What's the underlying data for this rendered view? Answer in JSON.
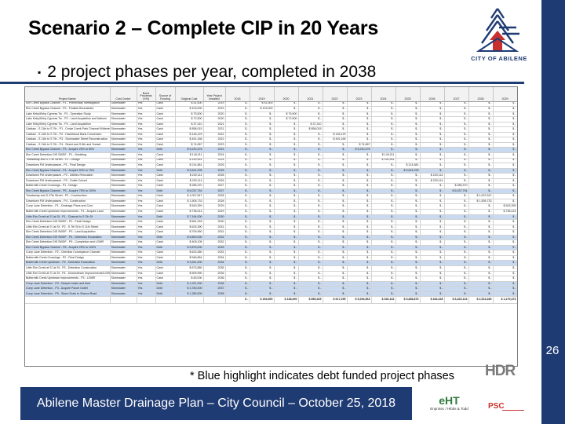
{
  "slide": {
    "title": "Scenario 2 – Complete CIP in 20 Years",
    "bullet": "2 project phases per year, completed in 2038",
    "footnote": "* Blue highlight indicates debt funded project phases",
    "footer": "Abilene Master Drainage Plan – City Council – October 25, 2018",
    "page_number": "26",
    "city_logo_text": "CITY OF ABILENE",
    "hdr_logo_text": "HDR",
    "eht_logo_text": "eHT",
    "eht_logo_sub": "Enprotec / Hibbs & Todd",
    "psc_logo_text": "PSC",
    "brand_color": "#1f3b73",
    "debt_highlight_color": "#c9daf0"
  },
  "table": {
    "headers": [
      "Project Name",
      "Cost Center",
      "Bond Proceeds (Y/N)",
      "Source of Funding",
      "Original Cost",
      "Year Project Installed",
      "2018",
      "2019",
      "2020",
      "2021",
      "2022",
      "2023",
      "2024",
      "2025",
      "2026",
      "2027",
      "2028",
      "2029"
    ],
    "rows": [
      {
        "c": [
          "Elm Creek Bypass Channel - P1 - Preliminary Investigation",
          "Stormwater",
          "Yes",
          "Cash",
          "$ 51,500",
          "2019",
          "$ -",
          "$ 51,500",
          "$ -",
          "$ -",
          "$ -",
          "$ -",
          "$ -",
          "$ -",
          "$ -",
          "$ -",
          "$ -",
          "$ -"
        ],
        "debt": false
      },
      {
        "c": [
          "Elm Creek Bypass Channel - P2 - Finalize Boundaries",
          "Stormwater",
          "Yes",
          "Cash",
          "$ 103,000",
          "2019",
          "$ -",
          "$ 103,000",
          "$ -",
          "$ -",
          "$ -",
          "$ -",
          "$ -",
          "$ -",
          "$ -",
          "$ -",
          "$ -",
          "$ -"
        ],
        "debt": false
      },
      {
        "c": [
          "Lake Kirby/Kirby Cypress Tw - P1 - Operation Study",
          "Stormwater",
          "Yes",
          "Cash",
          "$ 75,500",
          "2020",
          "$ -",
          "$ -",
          "$ 75,500",
          "$ -",
          "$ -",
          "$ -",
          "$ -",
          "$ -",
          "$ -",
          "$ -",
          "$ -",
          "$ -"
        ],
        "debt": false
      },
      {
        "c": [
          "Lake Kirby/Kirby Cypress Tw - P2 - Land Acquisition and Notices",
          "Stormwater",
          "Yes",
          "Cash",
          "$ 72,500",
          "2020",
          "$ -",
          "$ -",
          "$ 72,500",
          "$ -",
          "$ -",
          "$ -",
          "$ -",
          "$ -",
          "$ -",
          "$ -",
          "$ -",
          "$ -"
        ],
        "debt": false
      },
      {
        "c": [
          "Lake Kirby/Kirby Cypress Tw - P3 - Land Acquisition",
          "Stormwater",
          "Yes",
          "Cash",
          "$ 37,310",
          "2021",
          "$ -",
          "$ -",
          "$ -",
          "$ 37,310",
          "$ -",
          "$ -",
          "$ -",
          "$ -",
          "$ -",
          "$ -",
          "$ -",
          "$ -"
        ],
        "debt": false
      },
      {
        "c": [
          "Catclaw - S 11th to S 7th - P1 - Cedar Creek Park Channel Widening",
          "Stormwater",
          "Yes",
          "Cash",
          "$ 858,015",
          "2021",
          "$ -",
          "$ -",
          "$ -",
          "$ 858,015",
          "$ -",
          "$ -",
          "$ -",
          "$ -",
          "$ -",
          "$ -",
          "$ -",
          "$ -"
        ],
        "debt": false
      },
      {
        "c": [
          "Catclaw - S 11th to S 7th - P2 - Hazelwood Bank Conversion",
          "Stormwater",
          "Yes",
          "Cash",
          "$ 126,129",
          "2022",
          "$ -",
          "$ -",
          "$ -",
          "$ -",
          "$ 126,129",
          "$ -",
          "$ -",
          "$ -",
          "$ -",
          "$ -",
          "$ -",
          "$ -"
        ],
        "debt": false
      },
      {
        "c": [
          "Catclaw - S 11th to S 7th - P3 - Stormwater Street Reconstruction",
          "Stormwater",
          "Yes",
          "Cash",
          "$ 491,166",
          "2022",
          "$ -",
          "$ -",
          "$ -",
          "$ -",
          "$ 491,166",
          "$ -",
          "$ -",
          "$ -",
          "$ -",
          "$ -",
          "$ -",
          "$ -"
        ],
        "debt": false
      },
      {
        "c": [
          "Catclaw - S 11th to S 7th - P4 - Street and S 6th and Sunset",
          "Stormwater",
          "Yes",
          "Cash",
          "$ 74,087",
          "2023",
          "$ -",
          "$ -",
          "$ -",
          "$ -",
          "$ -",
          "$ 74,087",
          "$ -",
          "$ -",
          "$ -",
          "$ -",
          "$ -",
          "$ -"
        ],
        "debt": false
      },
      {
        "c": [
          "Elm Creek Bypass Channel - P3 - Acquire 25% to 50%",
          "Stormwater",
          "Yes",
          "Debt",
          "$ 5,220,476",
          "2023",
          "$ -",
          "$ -",
          "$ -",
          "$ -",
          "$ -",
          "$ 5,220,476",
          "$ -",
          "$ -",
          "$ -",
          "$ -",
          "$ -",
          "$ -"
        ],
        "debt": true
      },
      {
        "c": [
          "Elm Creek Detention DIS SWDF - P1 - Modeling",
          "Stormwater",
          "Yes",
          "Cash",
          "$ 149,211",
          "2024",
          "$ -",
          "$ -",
          "$ -",
          "$ -",
          "$ -",
          "$ -",
          "$ 149,211",
          "$ -",
          "$ -",
          "$ -",
          "$ -",
          "$ -"
        ],
        "debt": false
      },
      {
        "c": [
          "Treadaway and S 27th Street - P1 - Design",
          "Stormwater",
          "Yes",
          "Cash",
          "$ 190,951",
          "2024",
          "$ -",
          "$ -",
          "$ -",
          "$ -",
          "$ -",
          "$ -",
          "$ 190,951",
          "$ -",
          "$ -",
          "$ -",
          "$ -",
          "$ -"
        ],
        "debt": false
      },
      {
        "c": [
          "Downtown FM Underpasses - P1 - Final Design",
          "Stormwater",
          "Yes",
          "Cash",
          "$ 214,581",
          "2025",
          "$ -",
          "$ -",
          "$ -",
          "$ -",
          "$ -",
          "$ -",
          "$ -",
          "$ 214,581",
          "$ -",
          "$ -",
          "$ -",
          "$ -"
        ],
        "debt": false
      },
      {
        "c": [
          "Elm Creek Bypass Channel - P4 - Acquire 50% to 75%",
          "Stormwater",
          "Yes",
          "Debt",
          "$ 5,624,295",
          "2025",
          "$ -",
          "$ -",
          "$ -",
          "$ -",
          "$ -",
          "$ -",
          "$ -",
          "$ 5,624,295",
          "$ -",
          "$ -",
          "$ -",
          "$ -"
        ],
        "debt": true
      },
      {
        "c": [
          "Downtown FM Underpasses - P2 - Utilities Relocation",
          "Stormwater",
          "Yes",
          "Cash",
          "$ 220,114",
          "2026",
          "$ -",
          "$ -",
          "$ -",
          "$ -",
          "$ -",
          "$ -",
          "$ -",
          "$ -",
          "$ 220,114",
          "$ -",
          "$ -",
          "$ -"
        ],
        "debt": false
      },
      {
        "c": [
          "Downtown FM Underpasses - P3 - Outlet Culvert",
          "Stormwater",
          "Yes",
          "Cash",
          "$ 220,114",
          "2026",
          "$ -",
          "$ -",
          "$ -",
          "$ -",
          "$ -",
          "$ -",
          "$ -",
          "$ -",
          "$ 220,114",
          "$ -",
          "$ -",
          "$ -"
        ],
        "debt": false
      },
      {
        "c": [
          "Buttermilk Creek Crossings - P1 - Design",
          "Stormwater",
          "Yes",
          "Cash",
          "$ 285,370",
          "2027",
          "$ -",
          "$ -",
          "$ -",
          "$ -",
          "$ -",
          "$ -",
          "$ -",
          "$ -",
          "$ -",
          "$ 285,370",
          "$ -",
          "$ -"
        ],
        "debt": false
      },
      {
        "c": [
          "Elm Creek Bypass Channel - P5 - Acquire 75% to 100%",
          "Stormwater",
          "Yes",
          "Debt",
          "$ 6,037,754",
          "2027",
          "$ -",
          "$ -",
          "$ -",
          "$ -",
          "$ -",
          "$ -",
          "$ -",
          "$ -",
          "$ -",
          "$ 6,037,754",
          "$ -",
          "$ -"
        ],
        "debt": true
      },
      {
        "c": [
          "Treadaway and S 27th Street - P2 - Construction",
          "Stormwater",
          "Yes",
          "Cash",
          "$ 1,007,547",
          "2028",
          "$ -",
          "$ -",
          "$ -",
          "$ -",
          "$ -",
          "$ -",
          "$ -",
          "$ -",
          "$ -",
          "$ -",
          "$ 1,007,547",
          "$ -"
        ],
        "debt": false
      },
      {
        "c": [
          "Downtown FM Underpasses - P4 - Construction",
          "Stormwater",
          "Yes",
          "Cash",
          "$ 1,505,733",
          "2028",
          "$ -",
          "$ -",
          "$ -",
          "$ -",
          "$ -",
          "$ -",
          "$ -",
          "$ -",
          "$ -",
          "$ -",
          "$ 1,505,733",
          "$ -"
        ],
        "debt": false
      },
      {
        "c": [
          "Curry Lane Detention - P1 - Drainage Plans and Cost",
          "Stormwater",
          "Yes",
          "Cash",
          "$ 543,359",
          "2029",
          "$ -",
          "$ -",
          "$ -",
          "$ -",
          "$ -",
          "$ -",
          "$ -",
          "$ -",
          "$ -",
          "$ -",
          "$ -",
          "$ 543,359"
        ],
        "debt": false
      },
      {
        "c": [
          "Buttermilk Creek Upstream Improvements - P1 - Acquire Land",
          "Stormwater",
          "Yes",
          "Cash",
          "$ 736,014",
          "2029",
          "$ -",
          "$ -",
          "$ -",
          "$ -",
          "$ -",
          "$ -",
          "$ -",
          "$ -",
          "$ -",
          "$ -",
          "$ -",
          "$ 736,014"
        ],
        "debt": false
      },
      {
        "c": [
          "Little Elm Creek at S 1st St - P1 - Channel to S 7th St",
          "Stormwater",
          "Yes",
          "Debt",
          "$ 7,164,000",
          "2030",
          "$ -",
          "$ -",
          "$ -",
          "$ -",
          "$ -",
          "$ -",
          "$ -",
          "$ -",
          "$ -",
          "$ -",
          "$ -",
          "$ -"
        ],
        "debt": true
      },
      {
        "c": [
          "Elm Creek Detention DIS SWDF - P2 - Final Design",
          "Stormwater",
          "Yes",
          "Cash",
          "$ 661,333",
          "2030",
          "$ -",
          "$ -",
          "$ -",
          "$ -",
          "$ -",
          "$ -",
          "$ -",
          "$ -",
          "$ -",
          "$ -",
          "$ -",
          "$ -"
        ],
        "debt": false
      },
      {
        "c": [
          "Little Elm Creek at S 1st St - P2 - S 7th St to S 11th Street",
          "Stormwater",
          "Yes",
          "Cash",
          "$ 633,390",
          "2031",
          "$ -",
          "$ -",
          "$ -",
          "$ -",
          "$ -",
          "$ -",
          "$ -",
          "$ -",
          "$ -",
          "$ -",
          "$ -",
          "$ -"
        ],
        "debt": false
      },
      {
        "c": [
          "Elm Creek Detention DIS SWDF - P3 - Land Acquisition",
          "Stormwater",
          "Yes",
          "Cash",
          "$ 709,950",
          "2031",
          "$ -",
          "$ -",
          "$ -",
          "$ -",
          "$ -",
          "$ -",
          "$ -",
          "$ -",
          "$ -",
          "$ -",
          "$ -",
          "$ -"
        ],
        "debt": false
      },
      {
        "c": [
          "Elm Creek Detention DIS SWDF - P4 - Detention Excavation",
          "Stormwater",
          "Yes",
          "Debt",
          "$ 5,600,000",
          "2032",
          "$ -",
          "$ -",
          "$ -",
          "$ -",
          "$ -",
          "$ -",
          "$ -",
          "$ -",
          "$ -",
          "$ -",
          "$ -",
          "$ -"
        ],
        "debt": true
      },
      {
        "c": [
          "Elm Creek Detention DIS SWDF - P5 - Completion and LOMR",
          "Stormwater",
          "Yes",
          "Cash",
          "$ 409,105",
          "2032",
          "$ -",
          "$ -",
          "$ -",
          "$ -",
          "$ -",
          "$ -",
          "$ -",
          "$ -",
          "$ -",
          "$ -",
          "$ -",
          "$ -"
        ],
        "debt": false
      },
      {
        "c": [
          "Elm Creek Bypass Channel - P6 - Acquire 25% to 100%",
          "Stormwater",
          "Yes",
          "Debt",
          "$ 5,875,000",
          "2033",
          "$ -",
          "$ -",
          "$ -",
          "$ -",
          "$ -",
          "$ -",
          "$ -",
          "$ -",
          "$ -",
          "$ -",
          "$ -",
          "$ -"
        ],
        "debt": true
      },
      {
        "c": [
          "Curry Lane Detention - P2 - Overflow Conveyance Channel",
          "Stormwater",
          "Yes",
          "Cash",
          "$ 623,380",
          "2033",
          "$ -",
          "$ -",
          "$ -",
          "$ -",
          "$ -",
          "$ -",
          "$ -",
          "$ -",
          "$ -",
          "$ -",
          "$ -",
          "$ -"
        ],
        "debt": false
      },
      {
        "c": [
          "Buttermilk Creek Crossings - P2 - Final Design",
          "Stormwater",
          "Yes",
          "Cash",
          "$ 546,854",
          "2034",
          "$ -",
          "$ -",
          "$ -",
          "$ -",
          "$ -",
          "$ -",
          "$ -",
          "$ -",
          "$ -",
          "$ -",
          "$ -",
          "$ -"
        ],
        "debt": false
      },
      {
        "c": [
          "Buttermilk Creek Upstream - P2 - Detention Excavation",
          "Stormwater",
          "Yes",
          "Debt",
          "$ 3,641,000",
          "2034",
          "$ -",
          "$ -",
          "$ -",
          "$ -",
          "$ -",
          "$ -",
          "$ -",
          "$ -",
          "$ -",
          "$ -",
          "$ -",
          "$ -"
        ],
        "debt": true
      },
      {
        "c": [
          "Little Elm Creek at S 1st St - P3 - Detention Construction",
          "Stormwater",
          "Yes",
          "Cash",
          "$ 673,880",
          "2035",
          "$ -",
          "$ -",
          "$ -",
          "$ -",
          "$ -",
          "$ -",
          "$ -",
          "$ -",
          "$ -",
          "$ -",
          "$ -",
          "$ -"
        ],
        "debt": false
      },
      {
        "c": [
          "Little Elm Creek at S 1st St - P4 - Downstream Improvements/LOMR",
          "Stormwater",
          "Yes",
          "Cash",
          "$ 509,990",
          "2035",
          "$ -",
          "$ -",
          "$ -",
          "$ -",
          "$ -",
          "$ -",
          "$ -",
          "$ -",
          "$ -",
          "$ -",
          "$ -",
          "$ -"
        ],
        "debt": false
      },
      {
        "c": [
          "Buttermilk Creek Upstream Improvements - P3 - LOMR",
          "Stormwater",
          "Yes",
          "Cash",
          "$ 83,000",
          "2036",
          "$ -",
          "$ -",
          "$ -",
          "$ -",
          "$ -",
          "$ -",
          "$ -",
          "$ -",
          "$ -",
          "$ -",
          "$ -",
          "$ -"
        ],
        "debt": false
      },
      {
        "c": [
          "Curry Lane Detention - P3 - Deepen basin and feed",
          "Stormwater",
          "Yes",
          "Debt",
          "$ 1,921,000",
          "2036",
          "$ -",
          "$ -",
          "$ -",
          "$ -",
          "$ -",
          "$ -",
          "$ -",
          "$ -",
          "$ -",
          "$ -",
          "$ -",
          "$ -"
        ],
        "debt": true
      },
      {
        "c": [
          "Curry Lane Detention - P4 - Acquire Parcel Outlet",
          "Stormwater",
          "Yes",
          "Debt",
          "$ 3,780,000",
          "2037",
          "$ -",
          "$ -",
          "$ -",
          "$ -",
          "$ -",
          "$ -",
          "$ -",
          "$ -",
          "$ -",
          "$ -",
          "$ -",
          "$ -"
        ],
        "debt": true
      },
      {
        "c": [
          "Curry Lane Detention - P5 - Storm Drain to Sharon Road",
          "Stormwater",
          "Yes",
          "Debt",
          "$ 1,280,000",
          "2038",
          "$ -",
          "$ -",
          "$ -",
          "$ -",
          "$ -",
          "$ -",
          "$ -",
          "$ -",
          "$ -",
          "$ -",
          "$ -",
          "$ -"
        ],
        "debt": true
      }
    ],
    "totals": [
      "",
      "",
      "",
      "",
      "",
      "",
      "$ -",
      "$ 154,500",
      "$ 148,000",
      "$ 895,325",
      "$ 617,295",
      "$ 5,294,563",
      "$ 340,162",
      "$ 5,838,876",
      "$ 440,228",
      "$ 6,323,124",
      "$ 2,513,280",
      "$ 1,279,373"
    ]
  }
}
